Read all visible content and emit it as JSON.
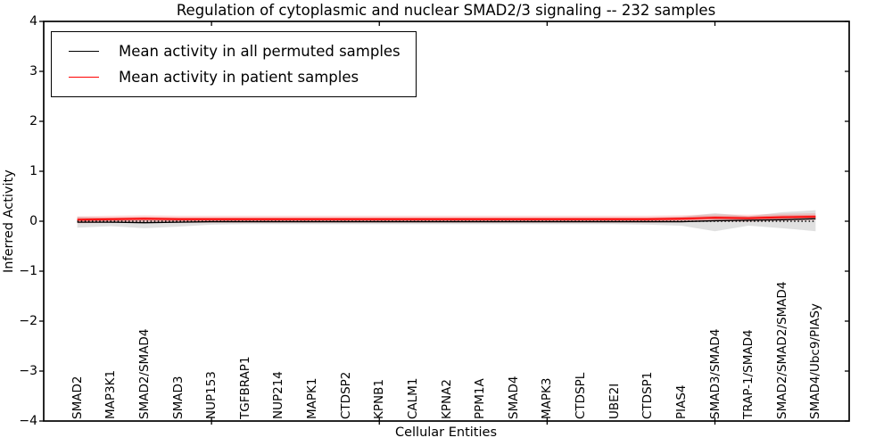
{
  "chart_data": {
    "type": "line",
    "title": "Regulation of cytoplasmic and nuclear SMAD2/3 signaling -- 232 samples",
    "xlabel": "Cellular Entities",
    "ylabel": "Inferred Activity",
    "ylim": [
      -4,
      4
    ],
    "yticks": [
      4,
      3,
      2,
      1,
      0,
      -1,
      -2,
      -3,
      -4
    ],
    "ytick_labels": [
      "4",
      "3",
      "2",
      "1",
      "0",
      "−1",
      "−2",
      "−3",
      "−4"
    ],
    "xtick_positions": [
      5,
      10,
      15,
      20
    ],
    "grid": false,
    "legend_position": "upper left",
    "categories": [
      "SMAD2",
      "MAP3K1",
      "SMAD2/SMAD4",
      "SMAD3",
      "NUP153",
      "TGFBRAP1",
      "NUP214",
      "MAPK1",
      "CTDSP2",
      "KPNB1",
      "CALM1",
      "KPNA2",
      "PPM1A",
      "SMAD4",
      "MAPK3",
      "CTDSPL",
      "UBE2I",
      "CTDSP1",
      "PIAS4",
      "SMAD3/SMAD4",
      "TRAP-1/SMAD4",
      "SMAD2/SMAD2/SMAD4",
      "SMAD4/Ubc9/PIASy"
    ],
    "series": [
      {
        "name": "Mean activity in all permuted samples",
        "color": "#000000",
        "style": "solid",
        "values": [
          -0.02,
          -0.02,
          -0.03,
          -0.02,
          -0.01,
          -0.01,
          -0.01,
          -0.01,
          -0.01,
          -0.01,
          -0.01,
          -0.01,
          -0.01,
          -0.01,
          -0.01,
          -0.01,
          -0.01,
          -0.01,
          -0.01,
          0.01,
          0.02,
          0.03,
          0.05
        ]
      },
      {
        "name": "Mean activity in patient samples",
        "color": "#ff0000",
        "style": "solid",
        "values": [
          0.03,
          0.04,
          0.05,
          0.04,
          0.04,
          0.04,
          0.04,
          0.04,
          0.04,
          0.04,
          0.04,
          0.04,
          0.04,
          0.04,
          0.04,
          0.04,
          0.04,
          0.04,
          0.05,
          0.07,
          0.06,
          0.08,
          0.09
        ]
      }
    ],
    "baseline": {
      "value": 0,
      "style": "dotted",
      "color": "#000000"
    },
    "band": {
      "name": "permuted-samples-spread-band",
      "color": "#000000",
      "opacity": 0.12,
      "upper": [
        0.09,
        0.07,
        0.08,
        0.07,
        0.07,
        0.07,
        0.07,
        0.07,
        0.07,
        0.07,
        0.07,
        0.07,
        0.07,
        0.07,
        0.07,
        0.07,
        0.07,
        0.07,
        0.09,
        0.16,
        0.1,
        0.18,
        0.22
      ],
      "lower": [
        -0.13,
        -0.1,
        -0.14,
        -0.11,
        -0.07,
        -0.06,
        -0.06,
        -0.06,
        -0.06,
        -0.06,
        -0.06,
        -0.06,
        -0.06,
        -0.06,
        -0.06,
        -0.06,
        -0.06,
        -0.07,
        -0.09,
        -0.2,
        -0.09,
        -0.14,
        -0.2
      ]
    }
  }
}
